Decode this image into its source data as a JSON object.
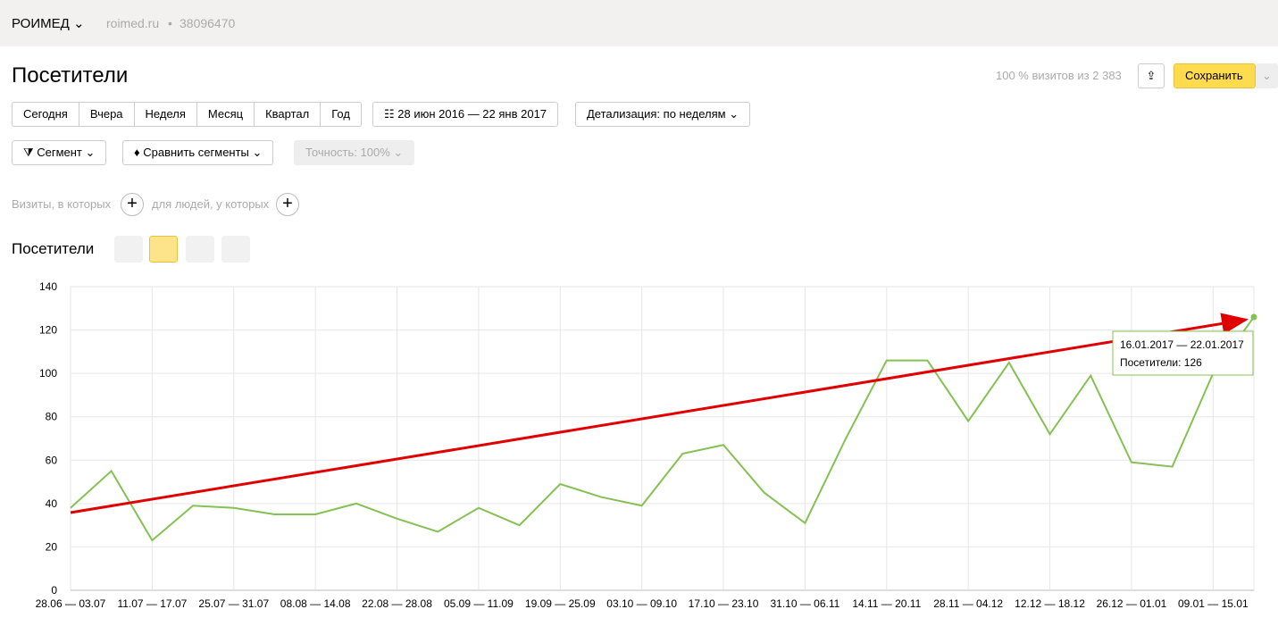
{
  "header": {
    "brand": "РОИМЕД",
    "site": "roimed.ru",
    "counter": "38096470"
  },
  "page": {
    "title": "Посетители",
    "sample": "100 % визитов из 2 383",
    "save": "Сохранить"
  },
  "periods": [
    "Сегодня",
    "Вчера",
    "Неделя",
    "Месяц",
    "Квартал",
    "Год"
  ],
  "date_range": "28 июн 2016 — 22 янв 2017",
  "detail": "Детализация: по неделям",
  "filters": {
    "segment": "Сегмент",
    "compare": "Сравнить сегменты",
    "accuracy": "Точность: 100%",
    "visits": "Визиты, в которых",
    "people": "для людей, у которых"
  },
  "chart_data": {
    "type": "line",
    "title": "Посетители",
    "categories": [
      "28.06 — 03.07",
      null,
      "11.07 — 17.07",
      null,
      "25.07 — 31.07",
      null,
      "08.08 — 14.08",
      null,
      "22.08 — 28.08",
      null,
      "05.09 — 11.09",
      null,
      "19.09 — 25.09",
      null,
      "03.10 — 09.10",
      null,
      "17.10 — 23.10",
      null,
      "31.10 — 06.11",
      null,
      "14.11 — 20.11",
      null,
      "28.11 — 04.12",
      null,
      "12.12 — 18.12",
      null,
      "26.12 — 01.01",
      null,
      "09.01 — 15.01",
      null
    ],
    "series": [
      {
        "name": "Посетители",
        "color": "#85c152",
        "values": [
          38,
          55,
          23,
          39,
          38,
          35,
          35,
          40,
          33,
          27,
          38,
          30,
          49,
          43,
          39,
          63,
          67,
          45,
          31,
          70,
          106,
          106,
          78,
          105,
          72,
          99,
          59,
          57,
          100,
          126
        ]
      }
    ],
    "ylim": [
      0,
      140
    ],
    "yticks": [
      0,
      20,
      40,
      60,
      80,
      100,
      120,
      140
    ],
    "grid": true,
    "tooltip": {
      "period": "16.01.2017 — 22.01.2017",
      "label": "Посетители:"
    }
  }
}
